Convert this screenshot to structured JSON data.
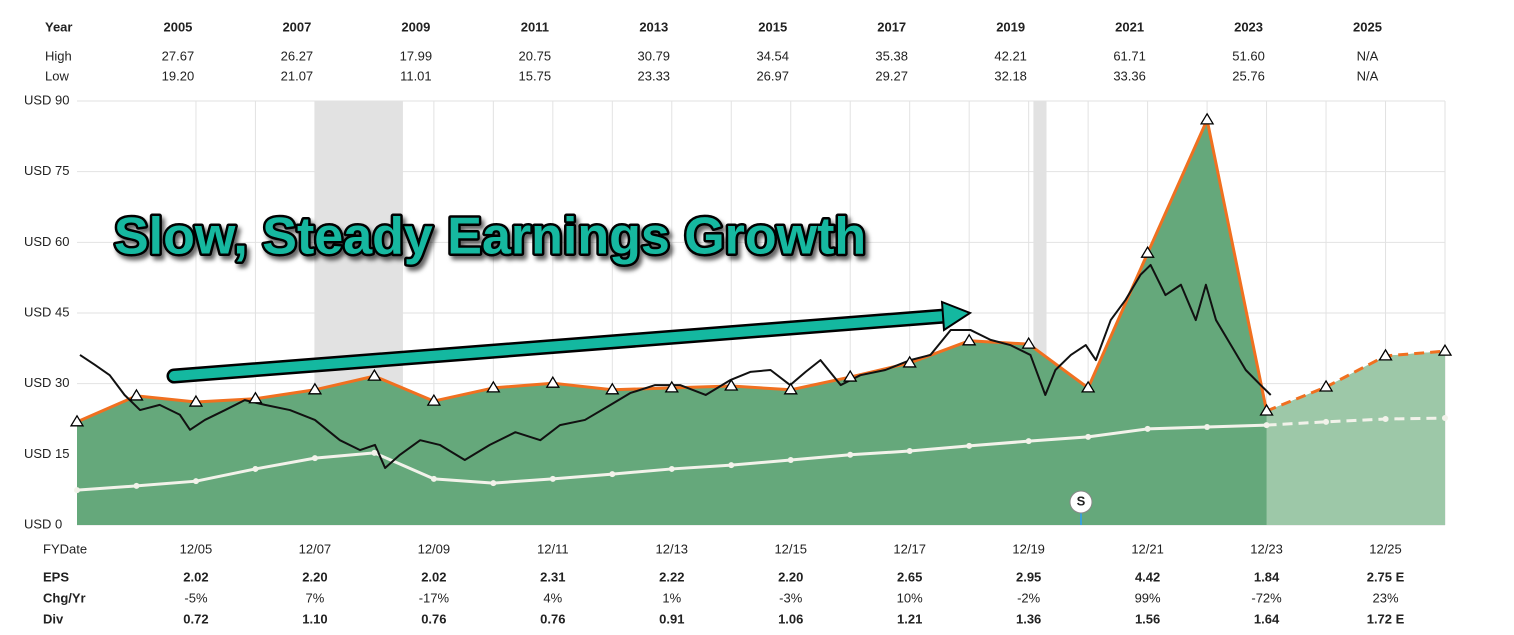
{
  "header_table": {
    "rows": [
      {
        "label": "Year",
        "cells": [
          "2005",
          "2007",
          "2009",
          "2011",
          "2013",
          "2015",
          "2017",
          "2019",
          "2021",
          "2023",
          "2025"
        ]
      },
      {
        "label": "High",
        "cells": [
          "27.67",
          "26.27",
          "17.99",
          "20.75",
          "30.79",
          "34.54",
          "35.38",
          "42.21",
          "61.71",
          "51.60",
          "N/A"
        ]
      },
      {
        "label": "Low",
        "cells": [
          "19.20",
          "21.07",
          "11.01",
          "15.75",
          "23.33",
          "26.97",
          "29.27",
          "32.18",
          "33.36",
          "25.76",
          "N/A"
        ]
      }
    ]
  },
  "chart_data": {
    "type": "line",
    "annotation": "Slow, Steady Earnings Growth",
    "x_label": "FYDate",
    "xlim": [
      2003.92,
      2026.92
    ],
    "xticks": [
      {
        "value": 2005.92,
        "label": "12/05"
      },
      {
        "value": 2007.92,
        "label": "12/07"
      },
      {
        "value": 2009.92,
        "label": "12/09"
      },
      {
        "value": 2011.92,
        "label": "12/11"
      },
      {
        "value": 2013.92,
        "label": "12/13"
      },
      {
        "value": 2015.92,
        "label": "12/15"
      },
      {
        "value": 2017.92,
        "label": "12/17"
      },
      {
        "value": 2019.92,
        "label": "12/19"
      },
      {
        "value": 2021.92,
        "label": "12/21"
      },
      {
        "value": 2023.92,
        "label": "12/23"
      },
      {
        "value": 2025.92,
        "label": "12/25"
      }
    ],
    "ylim": [
      0,
      90
    ],
    "yticks": [
      {
        "value": 0,
        "label": "USD 0"
      },
      {
        "value": 15,
        "label": "USD 15"
      },
      {
        "value": 30,
        "label": "USD 30"
      },
      {
        "value": 45,
        "label": "USD 45"
      },
      {
        "value": 60,
        "label": "USD 60"
      },
      {
        "value": 75,
        "label": "USD 75"
      },
      {
        "value": 90,
        "label": "USD 90"
      }
    ],
    "grid": true,
    "estimate_from": 2023.92,
    "shaded_ranges": [
      [
        2007.92,
        2009.4
      ],
      [
        2020.0,
        2020.22
      ]
    ],
    "events": [
      {
        "x": 2020.8,
        "label": "S"
      }
    ],
    "series": [
      {
        "color": "#f07020",
        "fill": "#65a87b",
        "fill_estimate": "#9dc8a8",
        "marker": "triangle",
        "x": [
          2003.92,
          2004.92,
          2005.92,
          2006.92,
          2007.92,
          2008.92,
          2009.92,
          2010.92,
          2011.92,
          2012.92,
          2013.92,
          2014.92,
          2015.92,
          2016.92,
          2017.92,
          2018.92,
          2019.92,
          2020.92,
          2021.92,
          2022.92,
          2023.92,
          2024.92,
          2025.92,
          2026.92
        ],
        "values": [
          21.9,
          27.4,
          26.1,
          26.8,
          28.7,
          31.6,
          26.3,
          29.1,
          30.1,
          28.7,
          29.1,
          29.5,
          28.7,
          31.4,
          34.4,
          39.1,
          38.4,
          29.1,
          57.7,
          86.0,
          24.2,
          29.3,
          35.9,
          36.9
        ]
      },
      {
        "color": "#f2f2ea",
        "marker": "dot",
        "x": [
          2003.92,
          2004.92,
          2005.92,
          2006.92,
          2007.92,
          2008.92,
          2009.92,
          2010.92,
          2011.92,
          2012.92,
          2013.92,
          2014.92,
          2015.92,
          2016.92,
          2017.92,
          2018.92,
          2019.92,
          2020.92,
          2021.92,
          2022.92,
          2023.92,
          2024.92,
          2025.92,
          2026.92
        ],
        "values": [
          7.4,
          8.3,
          9.3,
          11.9,
          14.2,
          15.3,
          9.8,
          8.9,
          9.8,
          10.8,
          11.9,
          12.7,
          13.8,
          14.9,
          15.7,
          16.8,
          17.8,
          18.7,
          20.4,
          20.8,
          21.2,
          21.9,
          22.5,
          22.7
        ]
      },
      {
        "color": "#111111",
        "x": [
          2003.97,
          2004.22,
          2004.47,
          2004.72,
          2004.98,
          2005.31,
          2005.65,
          2005.82,
          2006.07,
          2006.41,
          2006.74,
          2007.08,
          2007.5,
          2007.92,
          2008.34,
          2008.68,
          2008.93,
          2009.1,
          2009.35,
          2009.69,
          2010.02,
          2010.44,
          2010.86,
          2011.29,
          2011.71,
          2012.04,
          2012.46,
          2012.89,
          2013.22,
          2013.64,
          2014.06,
          2014.49,
          2014.91,
          2015.24,
          2015.58,
          2015.91,
          2016.17,
          2016.42,
          2016.76,
          2017.09,
          2017.51,
          2017.93,
          2018.27,
          2018.61,
          2018.94,
          2019.28,
          2019.61,
          2019.95,
          2020.2,
          2020.37,
          2020.63,
          2020.88,
          2021.05,
          2021.3,
          2021.55,
          2021.8,
          2021.97,
          2022.22,
          2022.48,
          2022.73,
          2022.9,
          2023.07,
          2023.32,
          2023.57,
          2023.82,
          2023.99
        ],
        "values": [
          36.1,
          34.0,
          31.8,
          27.6,
          24.4,
          25.5,
          23.4,
          20.2,
          22.3,
          24.4,
          26.5,
          25.5,
          24.4,
          22.3,
          18.0,
          15.9,
          17.0,
          12.1,
          14.9,
          18.0,
          17.0,
          13.8,
          17.0,
          19.7,
          18.0,
          21.2,
          22.3,
          25.5,
          28.0,
          29.7,
          29.7,
          27.6,
          30.8,
          32.5,
          32.9,
          29.7,
          32.5,
          35.0,
          29.7,
          31.8,
          32.9,
          35.0,
          36.1,
          41.4,
          41.4,
          39.3,
          38.2,
          36.1,
          27.6,
          32.9,
          36.1,
          38.2,
          35.0,
          43.5,
          47.8,
          53.1,
          55.2,
          48.8,
          51.0,
          43.5,
          51.0,
          43.5,
          38.2,
          32.9,
          29.7,
          27.6
        ]
      }
    ]
  },
  "footer_table": {
    "rows": [
      {
        "label": "EPS",
        "cells": [
          "2.02",
          "2.20",
          "2.02",
          "2.31",
          "2.22",
          "2.20",
          "2.65",
          "2.95",
          "4.42",
          "1.84",
          "2.75 E"
        ]
      },
      {
        "label": "Chg/Yr",
        "cells": [
          "-5%",
          "7%",
          "-17%",
          "4%",
          "1%",
          "-3%",
          "10%",
          "-2%",
          "99%",
          "-72%",
          "23%"
        ]
      },
      {
        "label": "Div",
        "cells": [
          "0.72",
          "1.10",
          "0.76",
          "0.76",
          "0.91",
          "1.06",
          "1.21",
          "1.36",
          "1.56",
          "1.64",
          "1.72 E"
        ]
      }
    ]
  }
}
